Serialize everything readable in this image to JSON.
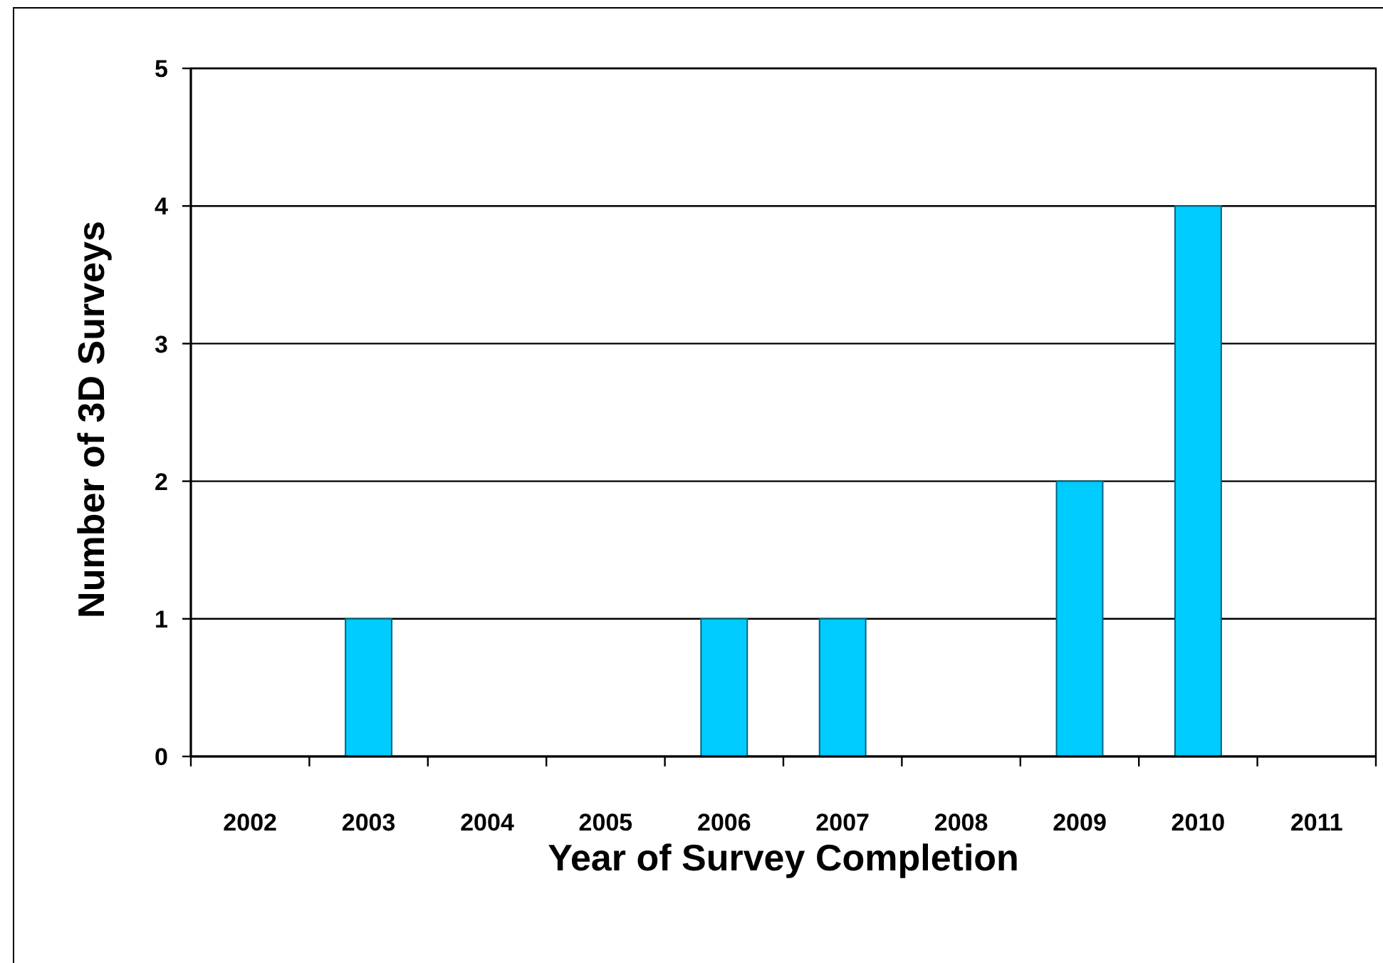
{
  "chart_data": {
    "type": "bar",
    "xlabel": "Year of Survey Completion",
    "ylabel": "Number of 3D Surveys",
    "categories": [
      "2002",
      "2003",
      "2004",
      "2005",
      "2006",
      "2007",
      "2008",
      "2009",
      "2010",
      "2011"
    ],
    "values": [
      0,
      1,
      0,
      0,
      1,
      1,
      0,
      2,
      4,
      0
    ],
    "color": "#00ccff",
    "ylim": [
      0,
      5
    ],
    "yticks": [
      0,
      1,
      2,
      3,
      4,
      5
    ],
    "grid": "y"
  }
}
